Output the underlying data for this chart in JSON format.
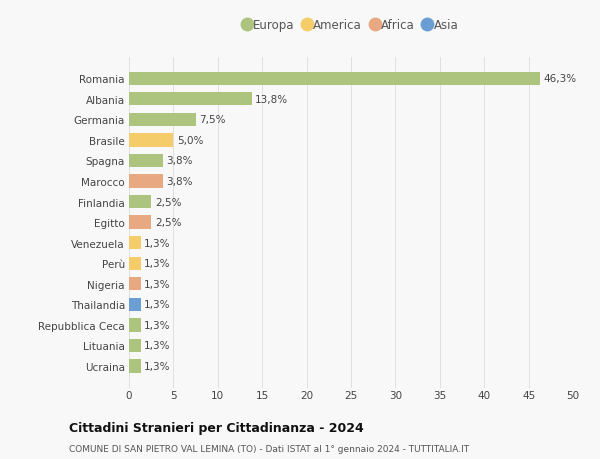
{
  "countries": [
    "Romania",
    "Albania",
    "Germania",
    "Brasile",
    "Spagna",
    "Marocco",
    "Finlandia",
    "Egitto",
    "Venezuela",
    "Perù",
    "Nigeria",
    "Thailandia",
    "Repubblica Ceca",
    "Lituania",
    "Ucraina"
  ],
  "values": [
    46.3,
    13.8,
    7.5,
    5.0,
    3.8,
    3.8,
    2.5,
    2.5,
    1.3,
    1.3,
    1.3,
    1.3,
    1.3,
    1.3,
    1.3
  ],
  "labels": [
    "46,3%",
    "13,8%",
    "7,5%",
    "5,0%",
    "3,8%",
    "3,8%",
    "2,5%",
    "2,5%",
    "1,3%",
    "1,3%",
    "1,3%",
    "1,3%",
    "1,3%",
    "1,3%",
    "1,3%"
  ],
  "colors": [
    "#adc47e",
    "#adc47e",
    "#adc47e",
    "#f5cc6a",
    "#adc47e",
    "#e8a882",
    "#adc47e",
    "#e8a882",
    "#f5cc6a",
    "#f5cc6a",
    "#e8a882",
    "#6b9fd4",
    "#adc47e",
    "#adc47e",
    "#adc47e"
  ],
  "legend_labels": [
    "Europa",
    "America",
    "Africa",
    "Asia"
  ],
  "legend_colors": [
    "#adc47e",
    "#f5cc6a",
    "#e8a882",
    "#6b9fd4"
  ],
  "xlim": [
    0,
    50
  ],
  "xticks": [
    0,
    5,
    10,
    15,
    20,
    25,
    30,
    35,
    40,
    45,
    50
  ],
  "title": "Cittadini Stranieri per Cittadinanza - 2024",
  "subtitle": "COMUNE DI SAN PIETRO VAL LEMINA (TO) - Dati ISTAT al 1° gennaio 2024 - TUTTITALIA.IT",
  "background_color": "#f8f8f8",
  "grid_color": "#e0e0e0",
  "bar_height": 0.65
}
